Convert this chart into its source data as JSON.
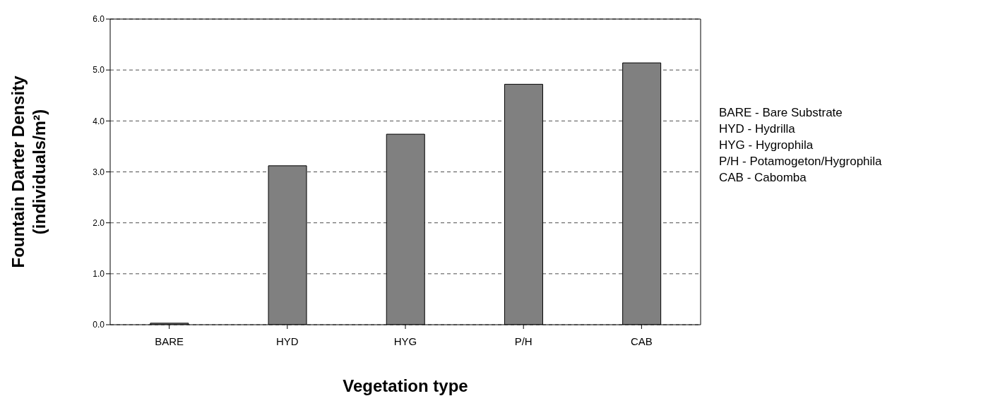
{
  "chart_data": {
    "type": "bar",
    "xlabel": "Vegetation type",
    "ylabel": "Fountain Darter Density (individuals/m²)",
    "categories": [
      "BARE",
      "HYD",
      "HYG",
      "P/H",
      "CAB"
    ],
    "values": [
      0.03,
      3.12,
      3.74,
      4.72,
      5.14
    ],
    "color": "#808080",
    "ylim": [
      0,
      6
    ],
    "yticks": [
      {
        "value": 0,
        "label": "0.0"
      },
      {
        "value": 1,
        "label": "1.0"
      },
      {
        "value": 2,
        "label": "2.0"
      },
      {
        "value": 3,
        "label": "3.0"
      },
      {
        "value": 4,
        "label": "4.0"
      },
      {
        "value": 5,
        "label": "5.0"
      },
      {
        "value": 6,
        "label": "6.0"
      }
    ],
    "grid": "y",
    "annotations": [
      "BARE -  Bare Substrate",
      "HYD -  Hydrilla",
      "HYG -  Hygrophila",
      "P/H -  Potamogeton/Hygrophila",
      "CAB -  Cabomba"
    ]
  }
}
